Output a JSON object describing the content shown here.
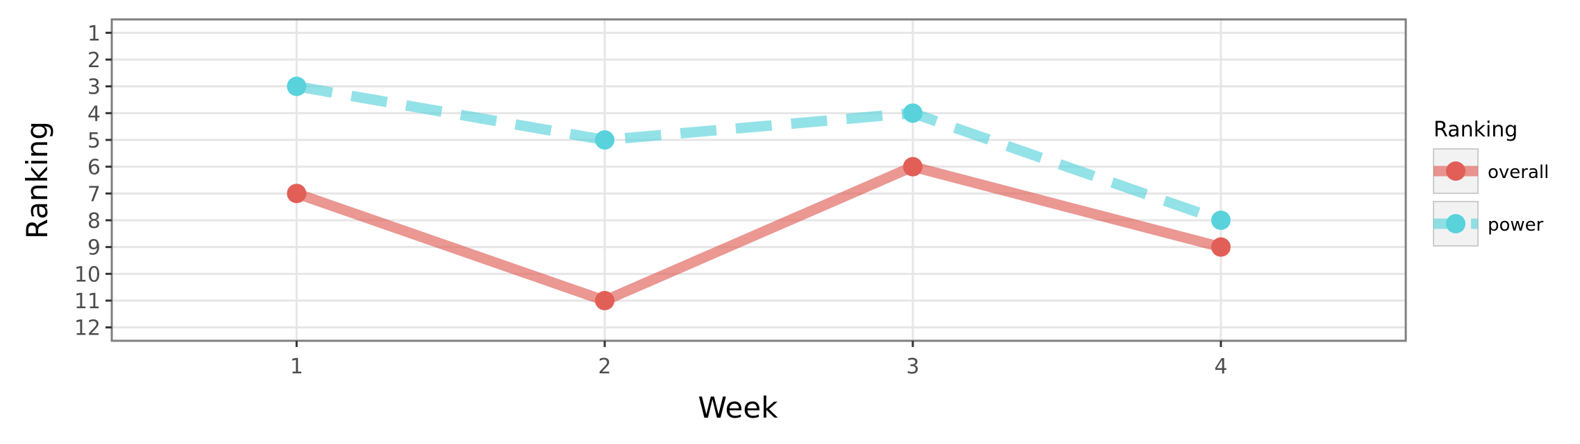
{
  "chart_data": {
    "type": "line",
    "title": "",
    "xlabel": "Week",
    "ylabel": "Ranking",
    "x": [
      1,
      2,
      3,
      4
    ],
    "x_ticks": [
      "1",
      "2",
      "3",
      "4"
    ],
    "y_ticks": [
      "1",
      "2",
      "3",
      "4",
      "5",
      "6",
      "7",
      "8",
      "9",
      "10",
      "11",
      "12"
    ],
    "xlim": [
      0.4,
      4.6
    ],
    "ylim": [
      12.5,
      0.5
    ],
    "y_reversed": true,
    "grid": true,
    "legend": {
      "title": "Ranking",
      "position": "right"
    },
    "series": [
      {
        "name": "overall",
        "values": [
          7,
          11,
          6,
          9
        ],
        "color": "#e15f57",
        "line_style": "solid"
      },
      {
        "name": "power",
        "values": [
          3,
          5,
          4,
          8
        ],
        "color": "#59d2dc",
        "line_style": "dashed"
      }
    ]
  }
}
